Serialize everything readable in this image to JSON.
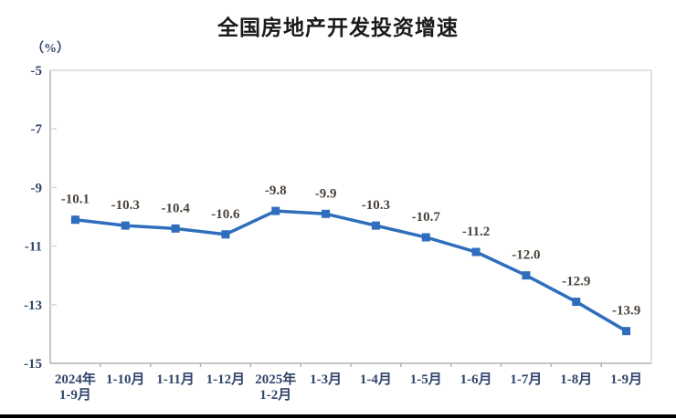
{
  "page": {
    "background": "#ffffff",
    "bottom_bar_color": "#000000"
  },
  "chart_data": {
    "type": "line",
    "title": "全国房地产开发投资增速",
    "unit_label": "（%）",
    "categories": [
      [
        "2024年",
        "1-9月"
      ],
      [
        "1-10月"
      ],
      [
        "1-11月"
      ],
      [
        "1-12月"
      ],
      [
        "2025年",
        "1-2月"
      ],
      [
        "1-3月"
      ],
      [
        "1-4月"
      ],
      [
        "1-5月"
      ],
      [
        "1-6月"
      ],
      [
        "1-7月"
      ],
      [
        "1-8月"
      ],
      [
        "1-9月"
      ]
    ],
    "values": [
      -10.1,
      -10.3,
      -10.4,
      -10.6,
      -9.8,
      -9.9,
      -10.3,
      -10.7,
      -11.2,
      -12.0,
      -12.9,
      -13.9
    ],
    "data_labels": [
      "-10.1",
      "-10.3",
      "-10.4",
      "-10.6",
      "-9.8",
      "-9.9",
      "-10.3",
      "-10.7",
      "-11.2",
      "-12.0",
      "-12.9",
      "-13.9"
    ],
    "ylim": [
      -15,
      -5
    ],
    "yticks": [
      "-5",
      "-7",
      "-9",
      "-11",
      "-13",
      "-15"
    ],
    "ytick_values": [
      -5,
      -7,
      -9,
      -11,
      -13,
      -15
    ],
    "grid": false,
    "legend": "none",
    "marker": "square",
    "colors": {
      "line": "#2f6ebc",
      "marker": "#2f6ebc",
      "data_label": "#4a433a",
      "tick_label": "#31456b",
      "axis": "#b3b3b3",
      "plot_border": "#d9d9d9",
      "title": "#1a1a1a"
    }
  }
}
